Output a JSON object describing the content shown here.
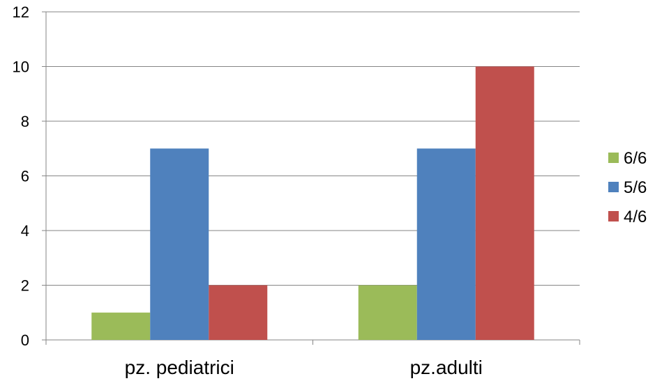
{
  "chart_data": {
    "type": "bar",
    "categories": [
      "pz. pediatrici",
      "pz.adulti"
    ],
    "series": [
      {
        "name": "6/6",
        "color": "#9bbb59",
        "values": [
          1,
          2
        ]
      },
      {
        "name": "5/6",
        "color": "#4f81bd",
        "values": [
          7,
          7
        ]
      },
      {
        "name": "4/6",
        "color": "#c0504d",
        "values": [
          2,
          10
        ]
      }
    ],
    "y_ticks": [
      "0",
      "2",
      "4",
      "6",
      "8",
      "10",
      "12"
    ],
    "ylim": [
      0,
      12
    ],
    "grid": true,
    "legend_position": "right"
  }
}
